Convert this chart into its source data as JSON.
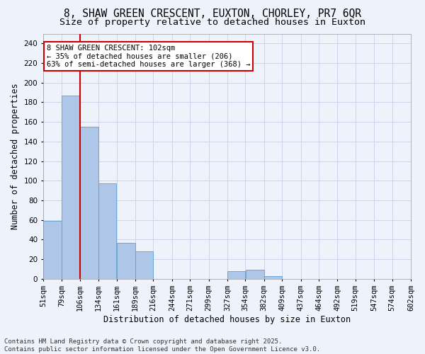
{
  "title_line1": "8, SHAW GREEN CRESCENT, EUXTON, CHORLEY, PR7 6QR",
  "title_line2": "Size of property relative to detached houses in Euxton",
  "xlabel": "Distribution of detached houses by size in Euxton",
  "ylabel": "Number of detached properties",
  "bar_left_edges": [
    51,
    79,
    106,
    134,
    161,
    189,
    216,
    244,
    271,
    299,
    327,
    354,
    382,
    409,
    437,
    464,
    492,
    519,
    547,
    574
  ],
  "bar_widths": [
    28,
    27,
    28,
    27,
    28,
    27,
    28,
    27,
    28,
    28,
    27,
    28,
    27,
    28,
    27,
    28,
    27,
    28,
    27,
    28
  ],
  "bar_heights": [
    59,
    187,
    155,
    97,
    37,
    28,
    0,
    0,
    0,
    0,
    8,
    9,
    3,
    0,
    0,
    0,
    0,
    0,
    0,
    0
  ],
  "bar_color": "#aec6e8",
  "bar_edge_color": "#5a9fd4",
  "tick_labels": [
    "51sqm",
    "79sqm",
    "106sqm",
    "134sqm",
    "161sqm",
    "189sqm",
    "216sqm",
    "244sqm",
    "271sqm",
    "299sqm",
    "327sqm",
    "354sqm",
    "382sqm",
    "409sqm",
    "437sqm",
    "464sqm",
    "492sqm",
    "519sqm",
    "547sqm",
    "574sqm",
    "602sqm"
  ],
  "vline_x": 106,
  "vline_color": "#cc0000",
  "annotation_text": "8 SHAW GREEN CRESCENT: 102sqm\n← 35% of detached houses are smaller (206)\n63% of semi-detached houses are larger (368) →",
  "ylim": [
    0,
    250
  ],
  "yticks": [
    0,
    20,
    40,
    60,
    80,
    100,
    120,
    140,
    160,
    180,
    200,
    220,
    240
  ],
  "background_color": "#eef2fb",
  "grid_color": "#c8d0e8",
  "footer_text": "Contains HM Land Registry data © Crown copyright and database right 2025.\nContains public sector information licensed under the Open Government Licence v3.0.",
  "title_fontsize": 10.5,
  "subtitle_fontsize": 9.5,
  "axis_label_fontsize": 8.5,
  "tick_fontsize": 7.5,
  "annotation_fontsize": 7.5,
  "footer_fontsize": 6.5
}
